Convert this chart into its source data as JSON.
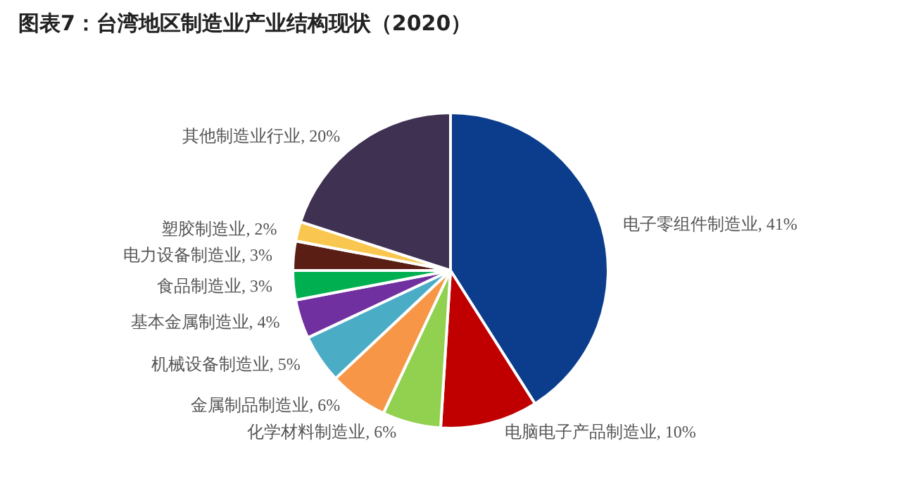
{
  "chart_data": {
    "type": "pie",
    "title": "图表7：台湾地区制造业产业结构现状（2020）",
    "categories": [
      "电子零组件制造业",
      "电脑电子产品制造业",
      "化学材料制造业",
      "金属制品制造业",
      "机械设备制造业",
      "基本金属制造业",
      "食品制造业",
      "电力设备制造业",
      "塑胶制造业",
      "其他制造业行业"
    ],
    "values": [
      41,
      10,
      6,
      6,
      5,
      4,
      3,
      3,
      2,
      20
    ],
    "value_labels": [
      "41%",
      "10%",
      "6%",
      "6%",
      "5%",
      "4%",
      "3%",
      "3%",
      "2%",
      "20%"
    ],
    "colors": [
      "#0b3d8c",
      "#c00000",
      "#92d050",
      "#f79646",
      "#4bacc6",
      "#7030a0",
      "#00b050",
      "#5a1e14",
      "#f9c74f",
      "#3f3151"
    ]
  }
}
